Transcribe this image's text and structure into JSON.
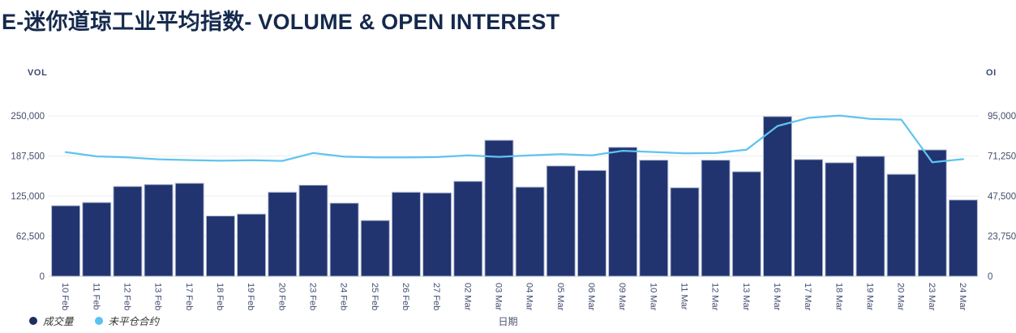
{
  "title": "E-迷你道琼工业平均指数- VOLUME & OPEN INTEREST",
  "chart_data": {
    "type": "bar+line",
    "categories": [
      "10 Feb",
      "11 Feb",
      "12 Feb",
      "13 Feb",
      "17 Feb",
      "18 Feb",
      "19 Feb",
      "20 Feb",
      "23 Feb",
      "24 Feb",
      "25 Feb",
      "26 Feb",
      "27 Feb",
      "02 Mar",
      "03 Mar",
      "04 Mar",
      "05 Mar",
      "06 Mar",
      "09 Mar",
      "10 Mar",
      "11 Mar",
      "12 Mar",
      "13 Mar",
      "16 Mar",
      "17 Mar",
      "18 Mar",
      "19 Mar",
      "20 Mar",
      "23 Mar",
      "24 Mar"
    ],
    "series": [
      {
        "name": "成交量",
        "type": "bar",
        "axis": "left",
        "color": "#213470",
        "border_color": "#b6bfd5",
        "values": [
          110000,
          115000,
          140000,
          143000,
          145000,
          94000,
          97000,
          131000,
          142000,
          114000,
          87000,
          131000,
          130000,
          148000,
          212000,
          139000,
          172000,
          165000,
          201000,
          181000,
          138000,
          181000,
          163000,
          249000,
          182000,
          177000,
          187000,
          159000,
          197000,
          119000
        ]
      },
      {
        "name": "未平仓合约",
        "type": "line",
        "axis": "right",
        "color": "#5ec4f0",
        "values": [
          73500,
          71000,
          70400,
          69300,
          68800,
          68400,
          68700,
          68300,
          73000,
          70800,
          70400,
          70400,
          70600,
          71600,
          70700,
          71600,
          72300,
          71600,
          74300,
          73600,
          72800,
          73000,
          75000,
          89000,
          93800,
          95200,
          93200,
          92800,
          67500,
          69400
        ]
      }
    ],
    "left_axis": {
      "title": "VOL",
      "min": 0,
      "max": 250000,
      "ticks": [
        "0",
        "62,500",
        "125,000",
        "187,500",
        "250,000"
      ]
    },
    "right_axis": {
      "title": "OI",
      "min": 0,
      "max": 95000,
      "ticks": [
        "0",
        "23,750",
        "47,500",
        "71,250",
        "95,000"
      ]
    },
    "xlabel": "日期",
    "grid": true,
    "legend_position": "bottom-left"
  },
  "legend": {
    "items": [
      {
        "label": "成交量",
        "color": "#1c2f5e"
      },
      {
        "label": "未平仓合约",
        "color": "#59c2ee"
      }
    ]
  },
  "colors": {
    "title": "#15294d",
    "axis_text": "#454f6d",
    "gridline": "#ededed",
    "baseline": "#d9d9d9"
  }
}
